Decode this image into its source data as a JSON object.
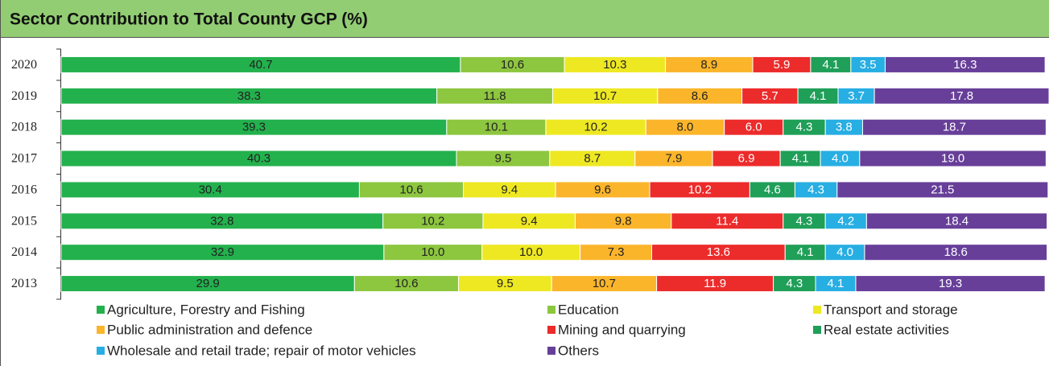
{
  "chart_data": {
    "type": "stacked-bar-horizontal",
    "title": "Sector Contribution to Total County GCP (%)",
    "categories": [
      "2020",
      "2019",
      "2018",
      "2017",
      "2016",
      "2015",
      "2014",
      "2013"
    ],
    "series": [
      {
        "name": "Agriculture, Forestry and Fishing",
        "color": "#23b14d",
        "values": [
          40.7,
          38.3,
          39.3,
          40.3,
          30.4,
          32.8,
          32.9,
          29.9
        ],
        "value_labels": [
          "40.7",
          "38.3",
          "39.3",
          "40.3",
          "30.4",
          "32.8",
          "32.9",
          "29.9"
        ]
      },
      {
        "name": "Education",
        "color": "#8dc63f",
        "values": [
          10.6,
          11.8,
          10.1,
          9.5,
          10.6,
          10.2,
          10.0,
          10.6
        ],
        "value_labels": [
          "10.6",
          "11.8",
          "10.1",
          "9.5",
          "10.6",
          "10.2",
          "10.0",
          "10.6"
        ]
      },
      {
        "name": "Transport and storage",
        "color": "#eee823",
        "values": [
          10.3,
          10.7,
          10.2,
          8.7,
          9.4,
          9.4,
          10.0,
          9.5
        ],
        "value_labels": [
          "10.3",
          "10.7",
          "10.2",
          "8.7",
          "9.4",
          "9.4",
          "10.0",
          "9.5"
        ]
      },
      {
        "name": "Public administration and defence",
        "color": "#fbb52b",
        "values": [
          8.9,
          8.6,
          8.0,
          7.9,
          9.6,
          9.8,
          7.3,
          10.7
        ],
        "value_labels": [
          "8.9",
          "8.6",
          "8.0",
          "7.9",
          "9.6",
          "9.8",
          "7.3",
          "10.7"
        ]
      },
      {
        "name": "Mining and quarrying",
        "color": "#ec2b2b",
        "values": [
          5.9,
          5.7,
          6.0,
          6.9,
          10.2,
          11.4,
          13.6,
          11.9
        ],
        "value_labels": [
          "5.9",
          "5.7",
          "6.0",
          "6.9",
          "10.2",
          "11.4",
          "13.6",
          "11.9"
        ]
      },
      {
        "name": "Real estate activities",
        "color": "#1f9f58",
        "values": [
          4.1,
          4.1,
          4.3,
          4.1,
          4.6,
          4.3,
          4.1,
          4.3
        ],
        "value_labels": [
          "4.1",
          "4.1",
          "4.3",
          "4.1",
          "4.6",
          "4.3",
          "4.1",
          "4.3"
        ]
      },
      {
        "name": "Wholesale and retail trade; repair of motor vehicles",
        "color": "#27aee3",
        "values": [
          3.5,
          3.7,
          3.8,
          4.0,
          4.3,
          4.2,
          4.0,
          4.1
        ],
        "value_labels": [
          "3.5",
          "3.7",
          "3.8",
          "4.0",
          "4.3",
          "4.2",
          "4.0",
          "4.1"
        ]
      },
      {
        "name": "Others",
        "color": "#673f99",
        "values": [
          16.3,
          17.8,
          18.7,
          19.0,
          21.5,
          18.4,
          18.6,
          19.3
        ],
        "value_labels": [
          "16.3",
          "17.8",
          "18.7",
          "19.0",
          "21.5",
          "18.4",
          "18.6",
          "19.3"
        ]
      }
    ]
  }
}
